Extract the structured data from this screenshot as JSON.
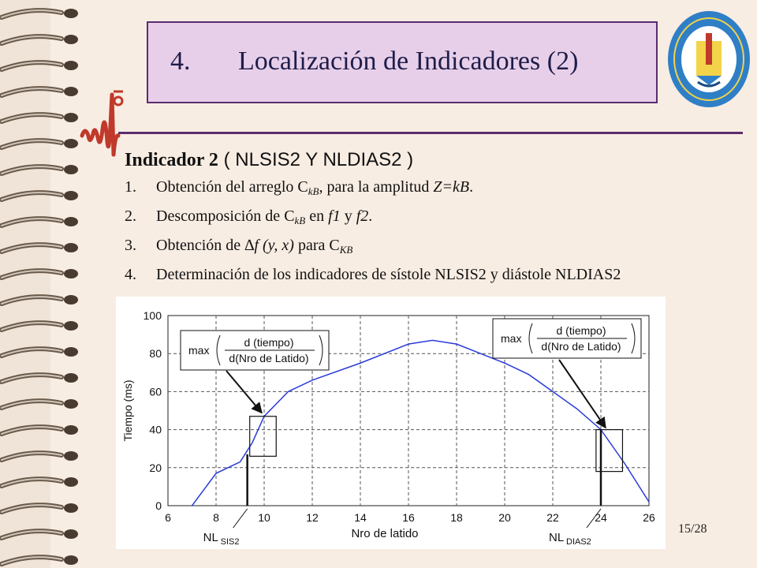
{
  "slide": {
    "title_number": "4.",
    "title_text": "Localización de Indicadores (2)",
    "page_number": "15/28"
  },
  "seal": {
    "ring_text": "UNIVERSIDAD CENTRAL “MARTA ABREU” DE LAS VILLAS",
    "motto": "VERITATE SOLA NOBIS IMPONETUR VIRILIS TOGA",
    "year": "1948",
    "city": "SANTA CLARA"
  },
  "heading": {
    "bold": "Indicador 2",
    "rest": " ( NLSIS2 Y NLDIAS2 )"
  },
  "steps": [
    {
      "num": "1.",
      "a": "Obtención del arreglo C",
      "sub": "kB",
      "b": ", para la amplitud ",
      "c": "Z=kB",
      "d": "."
    },
    {
      "num": "2.",
      "a": "Descomposición de C",
      "sub": "kB",
      "b": " en ",
      "c": "f1",
      "d": " y ",
      "e": "f2",
      "f": "."
    },
    {
      "num": "3.",
      "a": "Obtención de ",
      "b": "∆f (y, x)",
      "c": " para  C",
      "sub": "KB"
    },
    {
      "num": "4.",
      "a": "Determinación de los indicadores de sístole NLSIS2 y diástole NLDIAS2"
    }
  ],
  "chart_data": {
    "type": "line",
    "xlabel": "Nro de latido",
    "ylabel": "Tiempo (ms)",
    "xlim": [
      6,
      26
    ],
    "ylim": [
      0,
      100
    ],
    "xticks": [
      "6",
      "8",
      "10",
      "12",
      "14",
      "16",
      "18",
      "20",
      "22",
      "24",
      "26"
    ],
    "yticks": [
      "0",
      "20",
      "40",
      "60",
      "80",
      "100"
    ],
    "grid": true,
    "series": [
      {
        "x": [
          7,
          8,
          9,
          9.5,
          10,
          11,
          12,
          14,
          16,
          17,
          18,
          19,
          20,
          21,
          22,
          23,
          24,
          25,
          26
        ],
        "y": [
          0,
          17,
          23,
          33,
          47,
          60,
          66,
          75,
          85,
          87,
          85,
          80,
          75,
          69,
          60,
          51,
          40,
          22,
          2
        ],
        "color": "#2a3cd8"
      }
    ],
    "annotations": {
      "formula_max": "max",
      "formula_num": "d (tiempo)",
      "formula_den": "d(Nro de Latido)",
      "nl_left": "NL",
      "nl_left_sub": "SIS2",
      "nl_right": "NL",
      "nl_right_sub": "DIAS2"
    }
  }
}
